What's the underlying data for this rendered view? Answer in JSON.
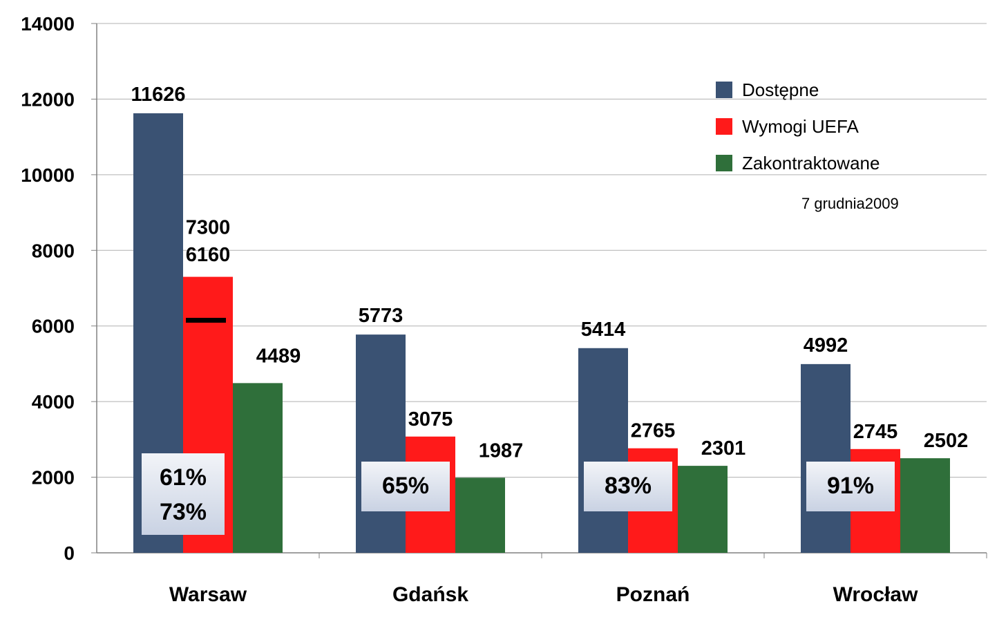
{
  "chart_data": {
    "type": "bar",
    "categories": [
      "Warsaw",
      "Gdańsk",
      "Poznań",
      "Wrocław"
    ],
    "series": [
      {
        "name": "Dostępne",
        "values": [
          11626,
          5773,
          5414,
          4992
        ],
        "color": "#3A5273"
      },
      {
        "name": "Wymogi UEFA",
        "values": [
          7300,
          3075,
          2765,
          2745
        ],
        "color": "#FF1A1A"
      },
      {
        "name": "Zakontraktowane",
        "values": [
          4489,
          1987,
          2301,
          2502
        ],
        "color": "#2F6F3A"
      }
    ],
    "ylim": [
      0,
      14000
    ],
    "yticks": [
      0,
      2000,
      4000,
      6000,
      8000,
      10000,
      12000,
      14000
    ],
    "grid": true,
    "legend_position": "top-right",
    "annotation_date": "7 grudnia2009",
    "warsaw_extra": {
      "label": "6160",
      "value": 6160
    },
    "percent_boxes": [
      [
        "61%",
        "73%"
      ],
      [
        "65%"
      ],
      [
        "83%"
      ],
      [
        "91%"
      ]
    ]
  }
}
